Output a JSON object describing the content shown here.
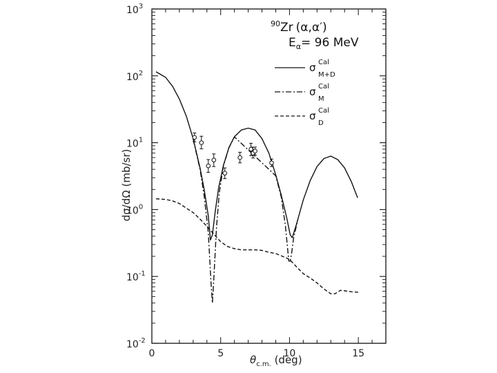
{
  "chart_data": {
    "type": "line",
    "title": {
      "mass": "90",
      "nucleus": "Zr",
      "reaction": "(α,α′)",
      "energy_label": "E",
      "energy_sub": "α",
      "energy_value": "= 96  MeV"
    },
    "xlabel": {
      "symbol": "θ",
      "sub": "c.m.",
      "unit": " (deg)"
    },
    "ylabel": "dσ/dΩ  (mb/sr)",
    "xlim": [
      0,
      17
    ],
    "ylim": [
      0.01,
      1000
    ],
    "yscale": "log",
    "x_ticks": [
      {
        "value": 0,
        "label": "0"
      },
      {
        "value": 5,
        "label": "5"
      },
      {
        "value": 10,
        "label": "10"
      },
      {
        "value": 15,
        "label": "15"
      }
    ],
    "y_ticks": [
      {
        "value": 0.01,
        "base": "10",
        "exp": "-2"
      },
      {
        "value": 0.1,
        "base": "10",
        "exp": "-1"
      },
      {
        "value": 1,
        "base": "10",
        "exp": "0"
      },
      {
        "value": 10,
        "base": "10",
        "exp": "1"
      },
      {
        "value": 100,
        "base": "10",
        "exp": "2"
      },
      {
        "value": 1000,
        "base": "10",
        "exp": "3"
      }
    ],
    "legend_position": "top-right",
    "series": [
      {
        "name": "sigma-cal-m-plus-d",
        "symbol": "σ",
        "sup": "Cal",
        "sub": "M+D",
        "style": "solid",
        "x": [
          0.3,
          1.0,
          1.5,
          2.0,
          2.5,
          3.0,
          3.5,
          3.8,
          4.1,
          4.25,
          4.4,
          4.6,
          4.85,
          5.2,
          5.6,
          6.0,
          6.5,
          7.0,
          7.5,
          8.0,
          8.5,
          9.0,
          9.4,
          9.8,
          10.05,
          10.2,
          10.5,
          11.0,
          11.5,
          12.0,
          12.5,
          13.0,
          13.5,
          14.0,
          14.5,
          14.95
        ],
        "y": [
          115,
          95,
          70,
          45,
          25,
          11.5,
          4.2,
          2.0,
          0.8,
          0.35,
          0.42,
          0.92,
          2.1,
          4.6,
          8.5,
          12.3,
          15.5,
          16.5,
          15.5,
          11.5,
          7.0,
          3.3,
          1.65,
          0.75,
          0.42,
          0.38,
          0.6,
          1.4,
          2.7,
          4.4,
          5.8,
          6.3,
          5.6,
          4.2,
          2.6,
          1.5
        ]
      },
      {
        "name": "sigma-cal-m",
        "symbol": "σ",
        "sup": "Cal",
        "sub": "M",
        "style": "dashdot",
        "x": [
          3.0,
          3.5,
          3.8,
          4.1,
          4.3,
          4.4,
          4.5,
          4.7,
          4.9,
          5.2,
          5.6,
          6.0,
          9.0,
          9.4,
          9.7,
          9.95,
          10.05,
          10.15,
          10.3,
          10.6
        ],
        "y": [
          11.3,
          4.0,
          1.6,
          0.45,
          0.08,
          0.04,
          0.09,
          0.55,
          1.8,
          4.5,
          8.4,
          12.2,
          3.2,
          1.55,
          0.58,
          0.17,
          0.17,
          0.22,
          0.38,
          0.7
        ]
      },
      {
        "name": "sigma-cal-d",
        "symbol": "σ",
        "sup": "Cal",
        "sub": "D",
        "style": "dashed",
        "x": [
          0.3,
          1.0,
          1.5,
          2.0,
          2.5,
          3.0,
          3.5,
          4.0,
          4.5,
          5.0,
          5.5,
          6.0,
          6.5,
          7.0,
          7.5,
          8.0,
          8.5,
          9.0,
          9.5,
          10.0,
          10.5,
          11.0,
          11.5,
          12.0,
          12.5,
          13.0,
          13.3,
          13.7,
          14.0,
          14.5,
          15.0
        ],
        "y": [
          1.45,
          1.42,
          1.35,
          1.23,
          1.05,
          0.9,
          0.72,
          0.56,
          0.43,
          0.33,
          0.28,
          0.26,
          0.25,
          0.25,
          0.25,
          0.245,
          0.23,
          0.22,
          0.2,
          0.18,
          0.14,
          0.11,
          0.095,
          0.08,
          0.065,
          0.055,
          0.055,
          0.062,
          0.061,
          0.059,
          0.058
        ]
      }
    ],
    "experimental": {
      "name": "measured-data",
      "x": [
        3.1,
        3.6,
        4.1,
        4.5,
        5.3,
        6.4,
        7.2,
        7.35,
        7.5,
        8.7
      ],
      "y": [
        12,
        10,
        4.5,
        5.5,
        3.5,
        6.0,
        8.0,
        7.0,
        7.5,
        5.0
      ],
      "err_up": [
        14,
        12.5,
        5.6,
        6.8,
        4.2,
        7.2,
        9.8,
        8.6,
        8.6,
        5.7
      ],
      "err_down": [
        10.3,
        8.1,
        3.6,
        4.4,
        2.9,
        5.0,
        6.4,
        5.9,
        6.5,
        4.4
      ]
    }
  }
}
